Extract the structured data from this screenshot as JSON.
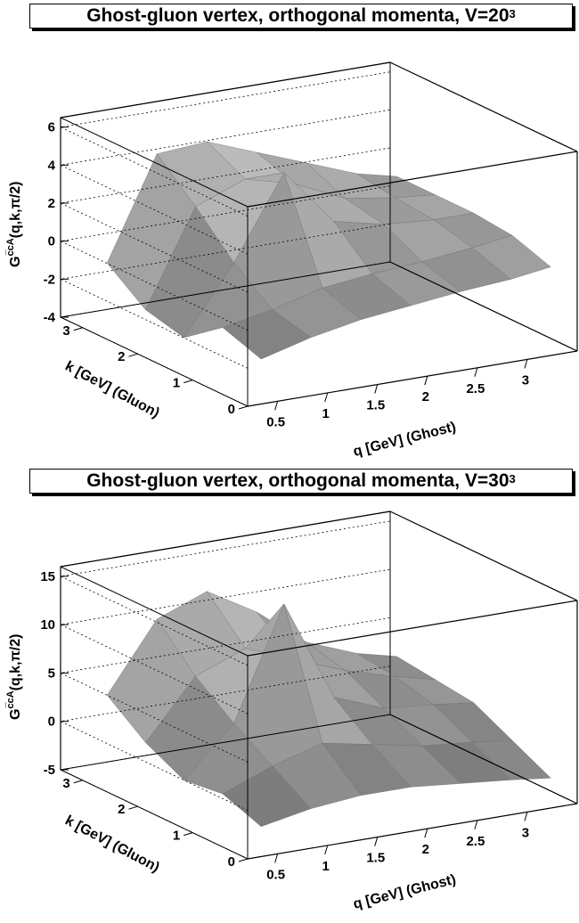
{
  "chart_data": [
    {
      "type": "surface",
      "title": "Ghost-gluon vertex, orthogonal momenta, V=20",
      "title_superscript": "3",
      "zlabel": "G^{c̅cA}(q,k,π/2)",
      "zlabel_main": "G",
      "zlabel_sup": "c̅cA",
      "zlabel_args": "(q,k,π/2)",
      "xlabel": "q [GeV] (Ghost)",
      "ylabel": "k [GeV] (Gluon)",
      "x_ticks": [
        "0.5",
        "1",
        "1.5",
        "2",
        "2.5",
        "3"
      ],
      "y_ticks": [
        "0",
        "1",
        "2",
        "3"
      ],
      "z_ticks": [
        "-4",
        "-2",
        "0",
        "2",
        "4",
        "6"
      ],
      "xlim": [
        0.2,
        3.5
      ],
      "ylim": [
        0,
        3.4
      ],
      "zlim": [
        -4,
        6.5
      ],
      "grid": true,
      "surface_color": "#9a9a9a",
      "k": [
        0.3,
        1.0,
        1.7,
        2.4,
        3.1
      ],
      "q": [
        0.5,
        1.0,
        1.5,
        2.0,
        2.5,
        3.0,
        3.4
      ],
      "z": [
        [
          -2.2,
          -1.5,
          -1.0,
          -0.7,
          -0.4,
          -0.2,
          0.1
        ],
        [
          -1.5,
          -1.0,
          -0.3,
          0.0,
          0.2,
          0.5,
          0.8
        ],
        [
          -3.0,
          0.5,
          4.8,
          1.8,
          1.2,
          1.0,
          1.0
        ],
        [
          -2.5,
          2.5,
          3.5,
          2.8,
          1.6,
          1.2,
          1.0
        ],
        [
          -1.0,
          4.3,
          4.5,
          3.5,
          2.5,
          1.5,
          1.0
        ]
      ]
    },
    {
      "type": "surface",
      "title": "Ghost-gluon vertex, orthogonal momenta, V=30",
      "title_superscript": "3",
      "zlabel": "G^{c̅cA}(q,k,π/2)",
      "zlabel_main": "G",
      "zlabel_sup": "c̅cA",
      "zlabel_args": "(q,k,π/2)",
      "xlabel": "q [GeV] (Ghost)",
      "ylabel": "k [GeV] (Gluon)",
      "x_ticks": [
        "0.5",
        "1",
        "1.5",
        "2",
        "2.5",
        "3"
      ],
      "y_ticks": [
        "0",
        "1",
        "2",
        "3"
      ],
      "z_ticks": [
        "-5",
        "0",
        "5",
        "10",
        "15"
      ],
      "xlim": [
        0.2,
        3.5
      ],
      "ylim": [
        0,
        3.4
      ],
      "zlim": [
        -5,
        16
      ],
      "grid": true,
      "surface_color": "#9a9a9a",
      "k": [
        0.3,
        1.0,
        1.7,
        2.4,
        3.1
      ],
      "q": [
        0.5,
        1.0,
        1.5,
        2.0,
        2.5,
        3.0,
        3.4
      ],
      "z": [
        [
          -3.0,
          -2.0,
          -1.5,
          -1.5,
          -2.0,
          -2.5,
          -3.0
        ],
        [
          -1.5,
          0.5,
          2.0,
          1.0,
          0.0,
          -0.5,
          -1.0
        ],
        [
          -2.0,
          3.0,
          14.5,
          4.0,
          2.0,
          1.5,
          1.0
        ],
        [
          0.0,
          6.0,
          8.0,
          6.0,
          4.0,
          2.5,
          1.5
        ],
        [
          3.0,
          10.0,
          12.0,
          9.0,
          5.0,
          3.0,
          2.0
        ]
      ]
    }
  ]
}
